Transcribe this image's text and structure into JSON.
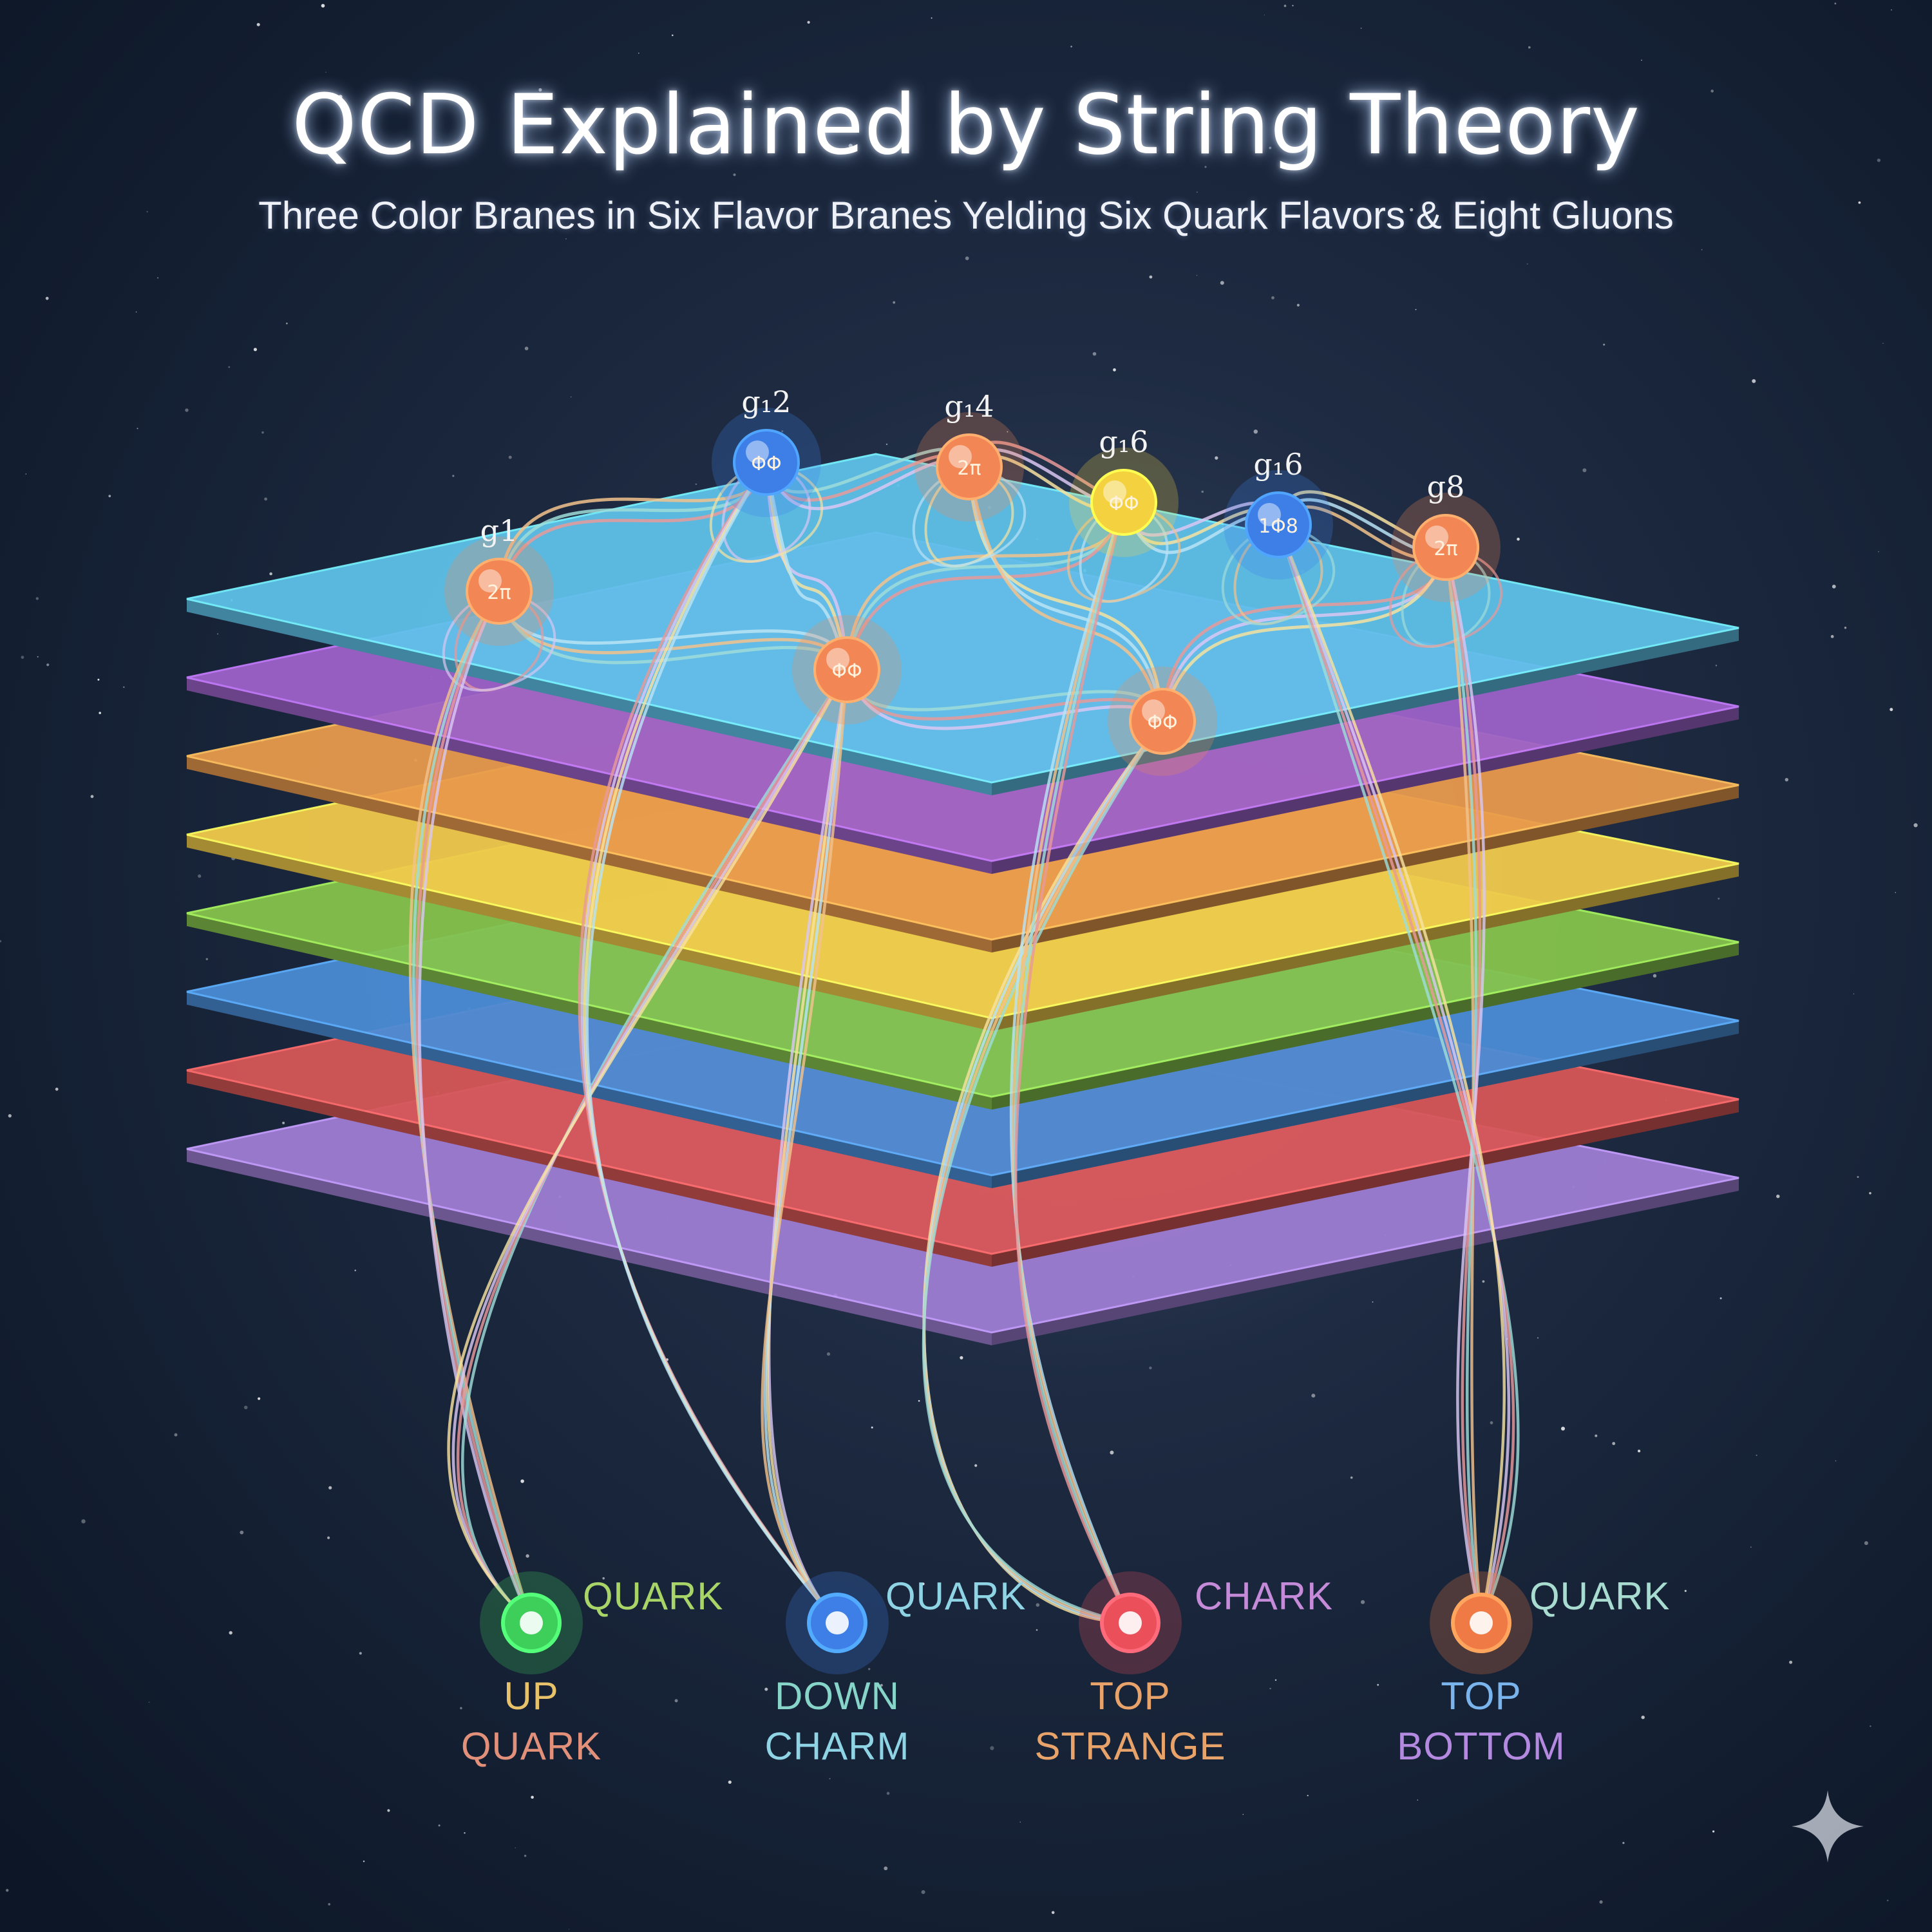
{
  "title": "QCD Explained by String Theory",
  "subtitle": "Three Color Branes in Six Flavor Branes Yelding Six Quark Flavors & Eight Gluons",
  "branes": [
    {
      "color": "#5fc2ea"
    },
    {
      "color": "#9d62c9"
    },
    {
      "color": "#e99a4c"
    },
    {
      "color": "#f2cb4c"
    },
    {
      "color": "#86c44c"
    },
    {
      "color": "#4b8dd6"
    },
    {
      "color": "#d75757"
    },
    {
      "color": "#9f7ed4"
    }
  ],
  "gluons": [
    {
      "label": "g1",
      "glyph": "2π",
      "color": "#f28755"
    },
    {
      "label": "g₁2",
      "glyph": "ΦΦ",
      "color": "#3d7fe6"
    },
    {
      "label": "g₁4",
      "glyph": "2π",
      "color": "#f28755"
    },
    {
      "label": "g₁6",
      "glyph": "ΦΦ",
      "color": "#f4d23f"
    },
    {
      "label": "g₁6",
      "glyph": "1Φ8",
      "color": "#3d7fe6"
    },
    {
      "label": "g8",
      "glyph": "2π",
      "color": "#f28755"
    },
    {
      "label": "",
      "glyph": "ΦΦ",
      "color": "#f28755"
    },
    {
      "label": "",
      "glyph": "ΦΦ",
      "color": "#f28755"
    }
  ],
  "quarks": [
    {
      "tag": "QUARK",
      "tag_color": "#a8d468",
      "line1": "UP",
      "line1_color": "#e8c26a",
      "line2": "QUARK",
      "line2_color": "#e2907a",
      "dot_color": "#3ecf5a"
    },
    {
      "tag": "QUARK",
      "tag_color": "#8fd4e4",
      "line1": "DOWN",
      "line1_color": "#87d4c8",
      "line2": "CHARM",
      "line2_color": "#8fd4e4",
      "dot_color": "#3d7fe6"
    },
    {
      "tag": "CHARK",
      "tag_color": "#c58ad8",
      "line1": "TOP",
      "line1_color": "#e8a36a",
      "line2": "STRANGE",
      "line2_color": "#e8a36a",
      "dot_color": "#ea4f5a"
    },
    {
      "tag": "QUARK",
      "tag_color": "#a8dcd0",
      "line1": "TOP",
      "line1_color": "#7ab4ec",
      "line2": "BOTTOM",
      "line2_color": "#b48ae0",
      "dot_color": "#f07a45"
    }
  ],
  "string_colors": [
    "#f2c28c",
    "#9fdcd8",
    "#e89a9a",
    "#d9c7f2",
    "#f6e2a0",
    "#b9e3f4"
  ]
}
